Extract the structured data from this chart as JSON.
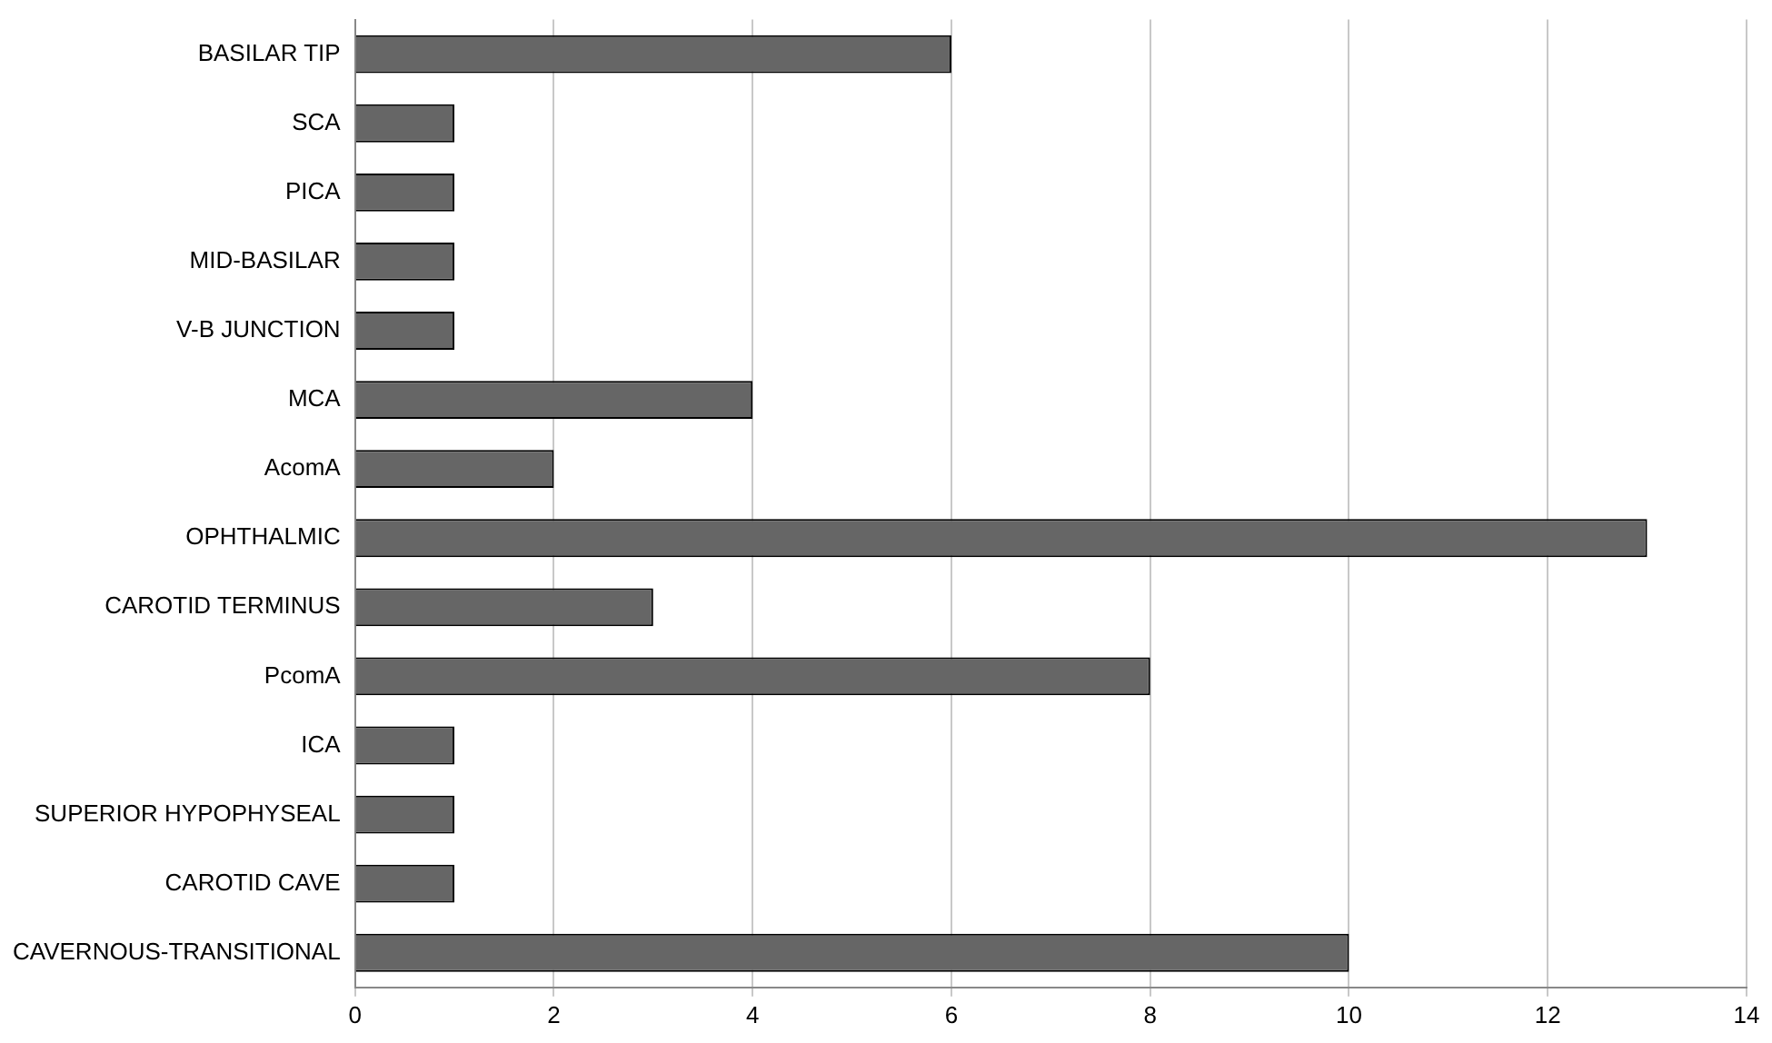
{
  "chart_data": {
    "type": "bar",
    "orientation": "horizontal",
    "categories": [
      "BASILAR TIP",
      "SCA",
      "PICA",
      "MID-BASILAR",
      "V-B JUNCTION",
      "MCA",
      "AcomA",
      "OPHTHALMIC",
      "CAROTID TERMINUS",
      "PcomA",
      "ICA",
      "SUPERIOR HYPOPHYSEAL",
      "CAROTID CAVE",
      "CAVERNOUS-TRANSITIONAL"
    ],
    "values": [
      6,
      1,
      1,
      1,
      1,
      4,
      2,
      13,
      3,
      8,
      1,
      1,
      1,
      10
    ],
    "color": "#666666",
    "xlim": [
      0,
      14
    ],
    "xticks": [
      0,
      2,
      4,
      6,
      8,
      10,
      12,
      14
    ],
    "grid": "x",
    "legend": false
  }
}
